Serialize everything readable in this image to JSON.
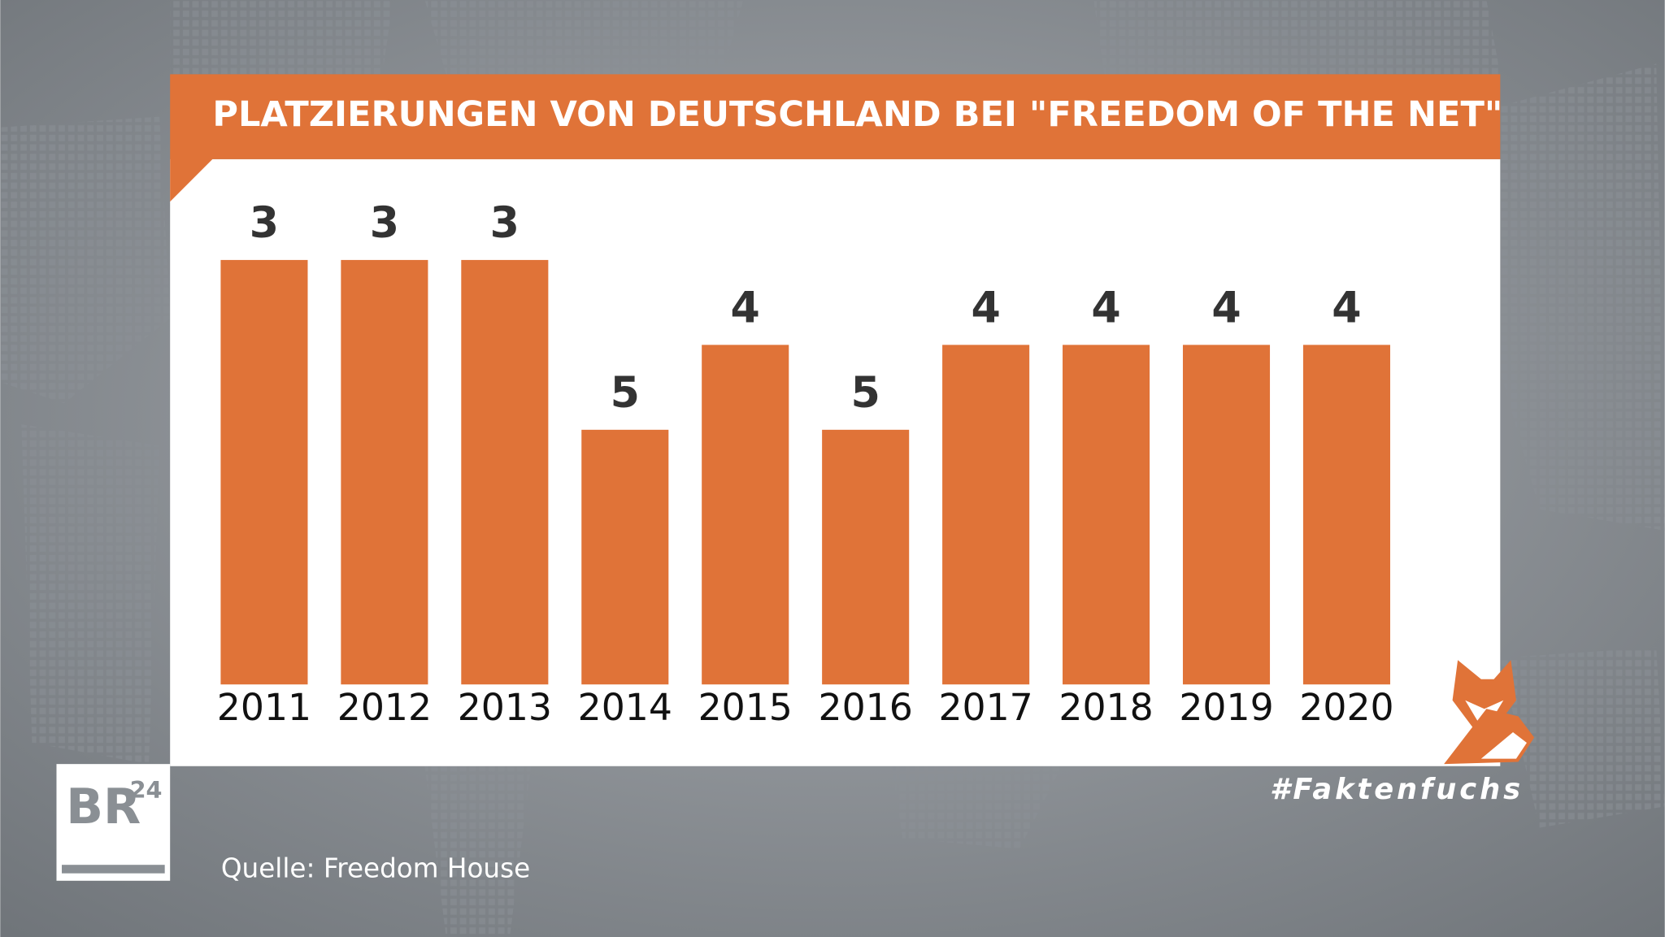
{
  "chart_data": {
    "type": "bar",
    "title": "PLATZIERUNGEN VON DEUTSCHLAND BEI \"FREEDOM OF THE NET\"",
    "categories": [
      "2011",
      "2012",
      "2013",
      "2014",
      "2015",
      "2016",
      "2017",
      "2018",
      "2019",
      "2020"
    ],
    "values": [
      3,
      3,
      3,
      5,
      4,
      5,
      4,
      4,
      4,
      4
    ],
    "color": "#e07338",
    "ylim": [
      8,
      3
    ],
    "source": "Quelle: Freedom House"
  },
  "branding": {
    "logo": "BR",
    "logo_sup": "24",
    "hashtag": "#Faktenfuchs"
  }
}
